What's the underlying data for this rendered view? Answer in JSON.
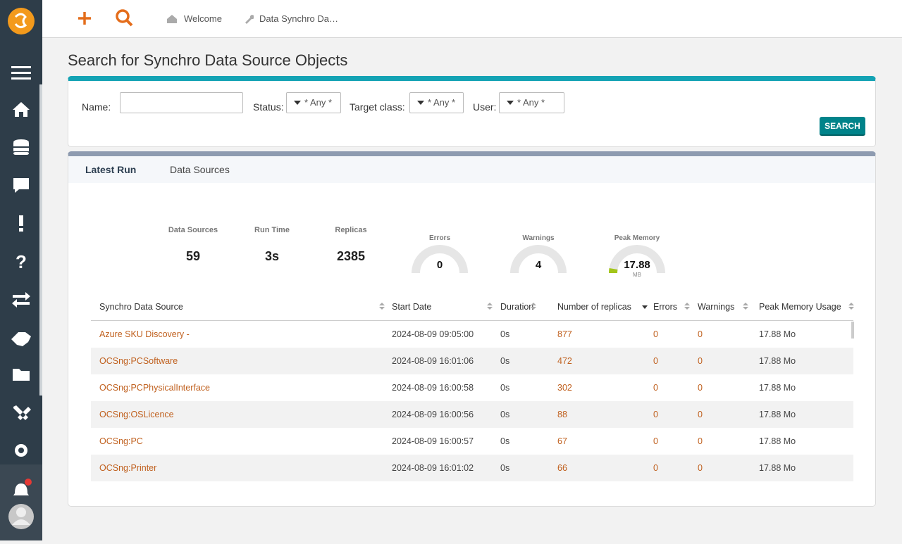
{
  "breadcrumbs": [
    "Welcome",
    "Data Synchro Da…"
  ],
  "page_title": "Search for Synchro Data Source Objects",
  "search": {
    "name_label": "Name:",
    "filters": [
      {
        "label": "Status:",
        "value": "* Any *"
      },
      {
        "label": "Target class:",
        "value": "* Any *"
      },
      {
        "label": "User:",
        "value": "* Any *"
      }
    ],
    "button": "SEARCH"
  },
  "tabs": [
    "Latest Run",
    "Data Sources"
  ],
  "stats": [
    {
      "label": "Data Sources",
      "value": "59"
    },
    {
      "label": "Run Time",
      "value": "3s"
    },
    {
      "label": "Replicas",
      "value": "2385"
    }
  ],
  "gauges": [
    {
      "label": "Errors",
      "value": "0"
    },
    {
      "label": "Warnings",
      "value": "4"
    },
    {
      "label": "Peak Memory",
      "value": "17.88",
      "unit": "MB"
    }
  ],
  "table": {
    "columns": [
      "Synchro Data Source",
      "Start Date",
      "Duration",
      "Number of replicas",
      "Errors",
      "Warnings",
      "Peak Memory Usage"
    ],
    "rows": [
      [
        "Azure SKU Discovery -",
        "2024-08-09 09:05:00",
        "0s",
        "877",
        "0",
        "0",
        "17.88 Mo"
      ],
      [
        "OCSng:PCSoftware",
        "2024-08-09 16:01:06",
        "0s",
        "472",
        "0",
        "0",
        "17.88 Mo"
      ],
      [
        "OCSng:PCPhysicalInterface",
        "2024-08-09 16:00:58",
        "0s",
        "302",
        "0",
        "0",
        "17.88 Mo"
      ],
      [
        "OCSng:OSLicence",
        "2024-08-09 16:00:56",
        "0s",
        "88",
        "0",
        "0",
        "17.88 Mo"
      ],
      [
        "OCSng:PC",
        "2024-08-09 16:00:57",
        "0s",
        "67",
        "0",
        "0",
        "17.88 Mo"
      ],
      [
        "OCSng:Printer",
        "2024-08-09 16:01:02",
        "0s",
        "66",
        "0",
        "0",
        "17.88 Mo"
      ]
    ]
  }
}
